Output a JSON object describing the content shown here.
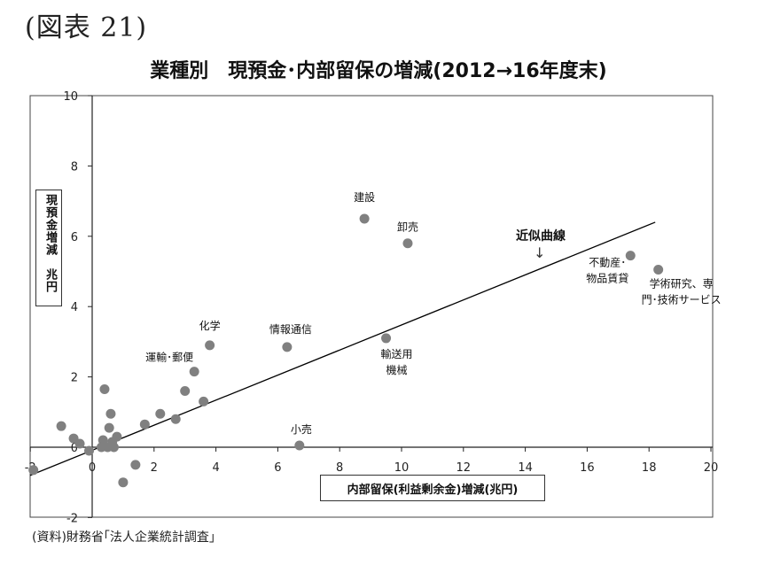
{
  "figure_label": "(図表 21)",
  "source_note": "(資料)財務省｢法人企業統計調査｣",
  "chart_data": {
    "type": "scatter",
    "title": "業種別　現預金･内部留保の増減(2012→16年度末)",
    "xlabel": "内部留保(利益剰余金)増減(兆円)",
    "ylabel": "現預金増減　兆円",
    "xlim": [
      -2,
      20
    ],
    "ylim": [
      -2,
      10
    ],
    "x_ticks": [
      "-2",
      "0",
      "2",
      "4",
      "6",
      "8",
      "10",
      "12",
      "14",
      "16",
      "18",
      "20"
    ],
    "y_ticks": [
      "-2",
      "0",
      "2",
      "4",
      "6",
      "8",
      "10"
    ],
    "grid": false,
    "trendline": {
      "label": "近似曲線",
      "from": [
        -2.0,
        -0.8
      ],
      "to": [
        18.2,
        6.4
      ]
    },
    "points": [
      {
        "x": 8.8,
        "y": 6.5,
        "label": "建設"
      },
      {
        "x": 10.2,
        "y": 5.8,
        "label": "卸売"
      },
      {
        "x": 17.4,
        "y": 5.45,
        "label": "不動産･\n物品賃貸"
      },
      {
        "x": 18.3,
        "y": 5.05,
        "label": "学術研究、専\n門･技術サービス"
      },
      {
        "x": 3.8,
        "y": 2.9,
        "label": "化学"
      },
      {
        "x": 6.3,
        "y": 2.85,
        "label": "情報通信"
      },
      {
        "x": 9.5,
        "y": 3.1,
        "label": "輸送用\n機械"
      },
      {
        "x": 3.3,
        "y": 2.15,
        "label": "運輸･郵便"
      },
      {
        "x": 6.7,
        "y": 0.05,
        "label": "小売"
      },
      {
        "x": 3.6,
        "y": 1.3,
        "label": ""
      },
      {
        "x": 3.0,
        "y": 1.6,
        "label": ""
      },
      {
        "x": 2.7,
        "y": 0.8,
        "label": ""
      },
      {
        "x": 2.2,
        "y": 0.95,
        "label": ""
      },
      {
        "x": 1.7,
        "y": 0.65,
        "label": ""
      },
      {
        "x": 0.4,
        "y": 1.65,
        "label": ""
      },
      {
        "x": 0.6,
        "y": 0.95,
        "label": ""
      },
      {
        "x": 0.55,
        "y": 0.55,
        "label": ""
      },
      {
        "x": 0.8,
        "y": 0.3,
        "label": ""
      },
      {
        "x": 0.65,
        "y": 0.15,
        "label": ""
      },
      {
        "x": 0.35,
        "y": 0.2,
        "label": ""
      },
      {
        "x": 0.3,
        "y": 0.0,
        "label": ""
      },
      {
        "x": 0.5,
        "y": 0.0,
        "label": ""
      },
      {
        "x": 0.7,
        "y": 0.0,
        "label": ""
      },
      {
        "x": -0.4,
        "y": 0.1,
        "label": ""
      },
      {
        "x": -0.6,
        "y": 0.25,
        "label": ""
      },
      {
        "x": -0.1,
        "y": -0.1,
        "label": ""
      },
      {
        "x": -1.0,
        "y": 0.6,
        "label": ""
      },
      {
        "x": -1.9,
        "y": -0.65,
        "label": ""
      },
      {
        "x": 1.4,
        "y": -0.5,
        "label": ""
      },
      {
        "x": 1.0,
        "y": -1.0,
        "label": ""
      }
    ]
  }
}
